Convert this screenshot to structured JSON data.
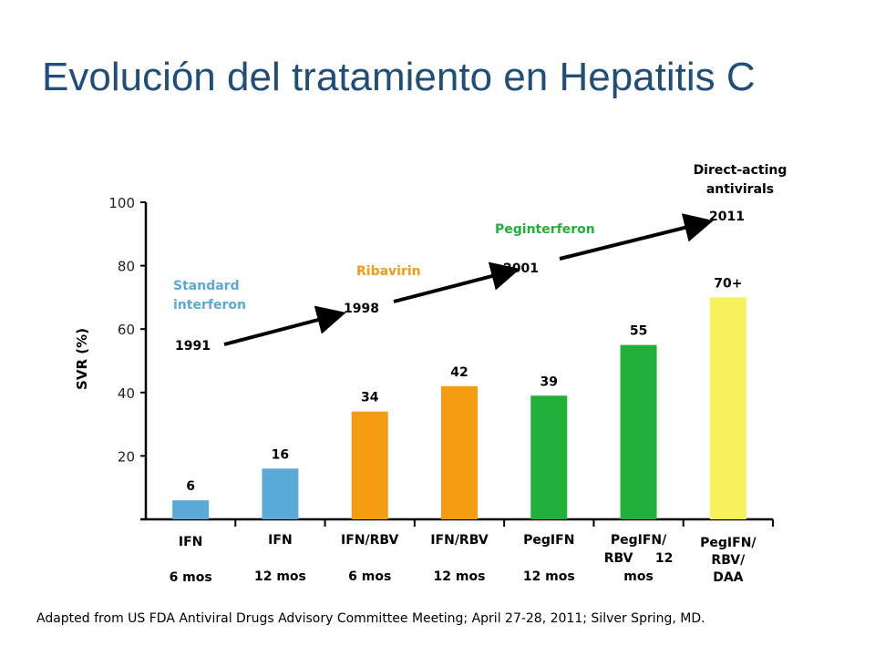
{
  "title": "Evolución del tratamiento en Hepatitis C",
  "footnote": "Adapted from US FDA Antiviral Drugs Advisory Committee Meeting; April 27-28, 2011; Silver Spring, MD.",
  "chart_data": {
    "type": "bar",
    "ylabel": "SVR (%)",
    "ylim": [
      0,
      100
    ],
    "yticks": [
      20,
      40,
      60,
      80,
      100
    ],
    "grid": false,
    "categories": [
      [
        "IFN",
        "6 mos"
      ],
      [
        "IFN",
        "12 mos"
      ],
      [
        "IFN/RBV",
        "6 mos"
      ],
      [
        "IFN/RBV",
        "12 mos"
      ],
      [
        "PegIFN",
        "12 mos"
      ],
      [
        "PegIFN/",
        "RBV     12",
        "mos"
      ],
      [
        "PegIFN/",
        "RBV/",
        "DAA"
      ]
    ],
    "values": [
      6,
      16,
      34,
      42,
      39,
      55,
      70
    ],
    "value_labels": [
      "6",
      "16",
      "34",
      "42",
      "39",
      "55",
      "70+"
    ],
    "bar_colors": [
      "#5aa9d6",
      "#5aa9d6",
      "#f39c12",
      "#f39c12",
      "#21b03a",
      "#21b03a",
      "#f7f15a"
    ],
    "milestones": [
      {
        "name": [
          "Standard",
          "interferon"
        ],
        "year": "1991",
        "color": "#5aa9d6"
      },
      {
        "name": [
          "Ribavirin"
        ],
        "year": "1998",
        "color": "#f39c12"
      },
      {
        "name": [
          "Peginterferon"
        ],
        "year": "2001",
        "color": "#21b03a"
      },
      {
        "name": [
          "Direct-acting",
          "antivirals"
        ],
        "year": "2011",
        "color": "#000000"
      }
    ]
  }
}
